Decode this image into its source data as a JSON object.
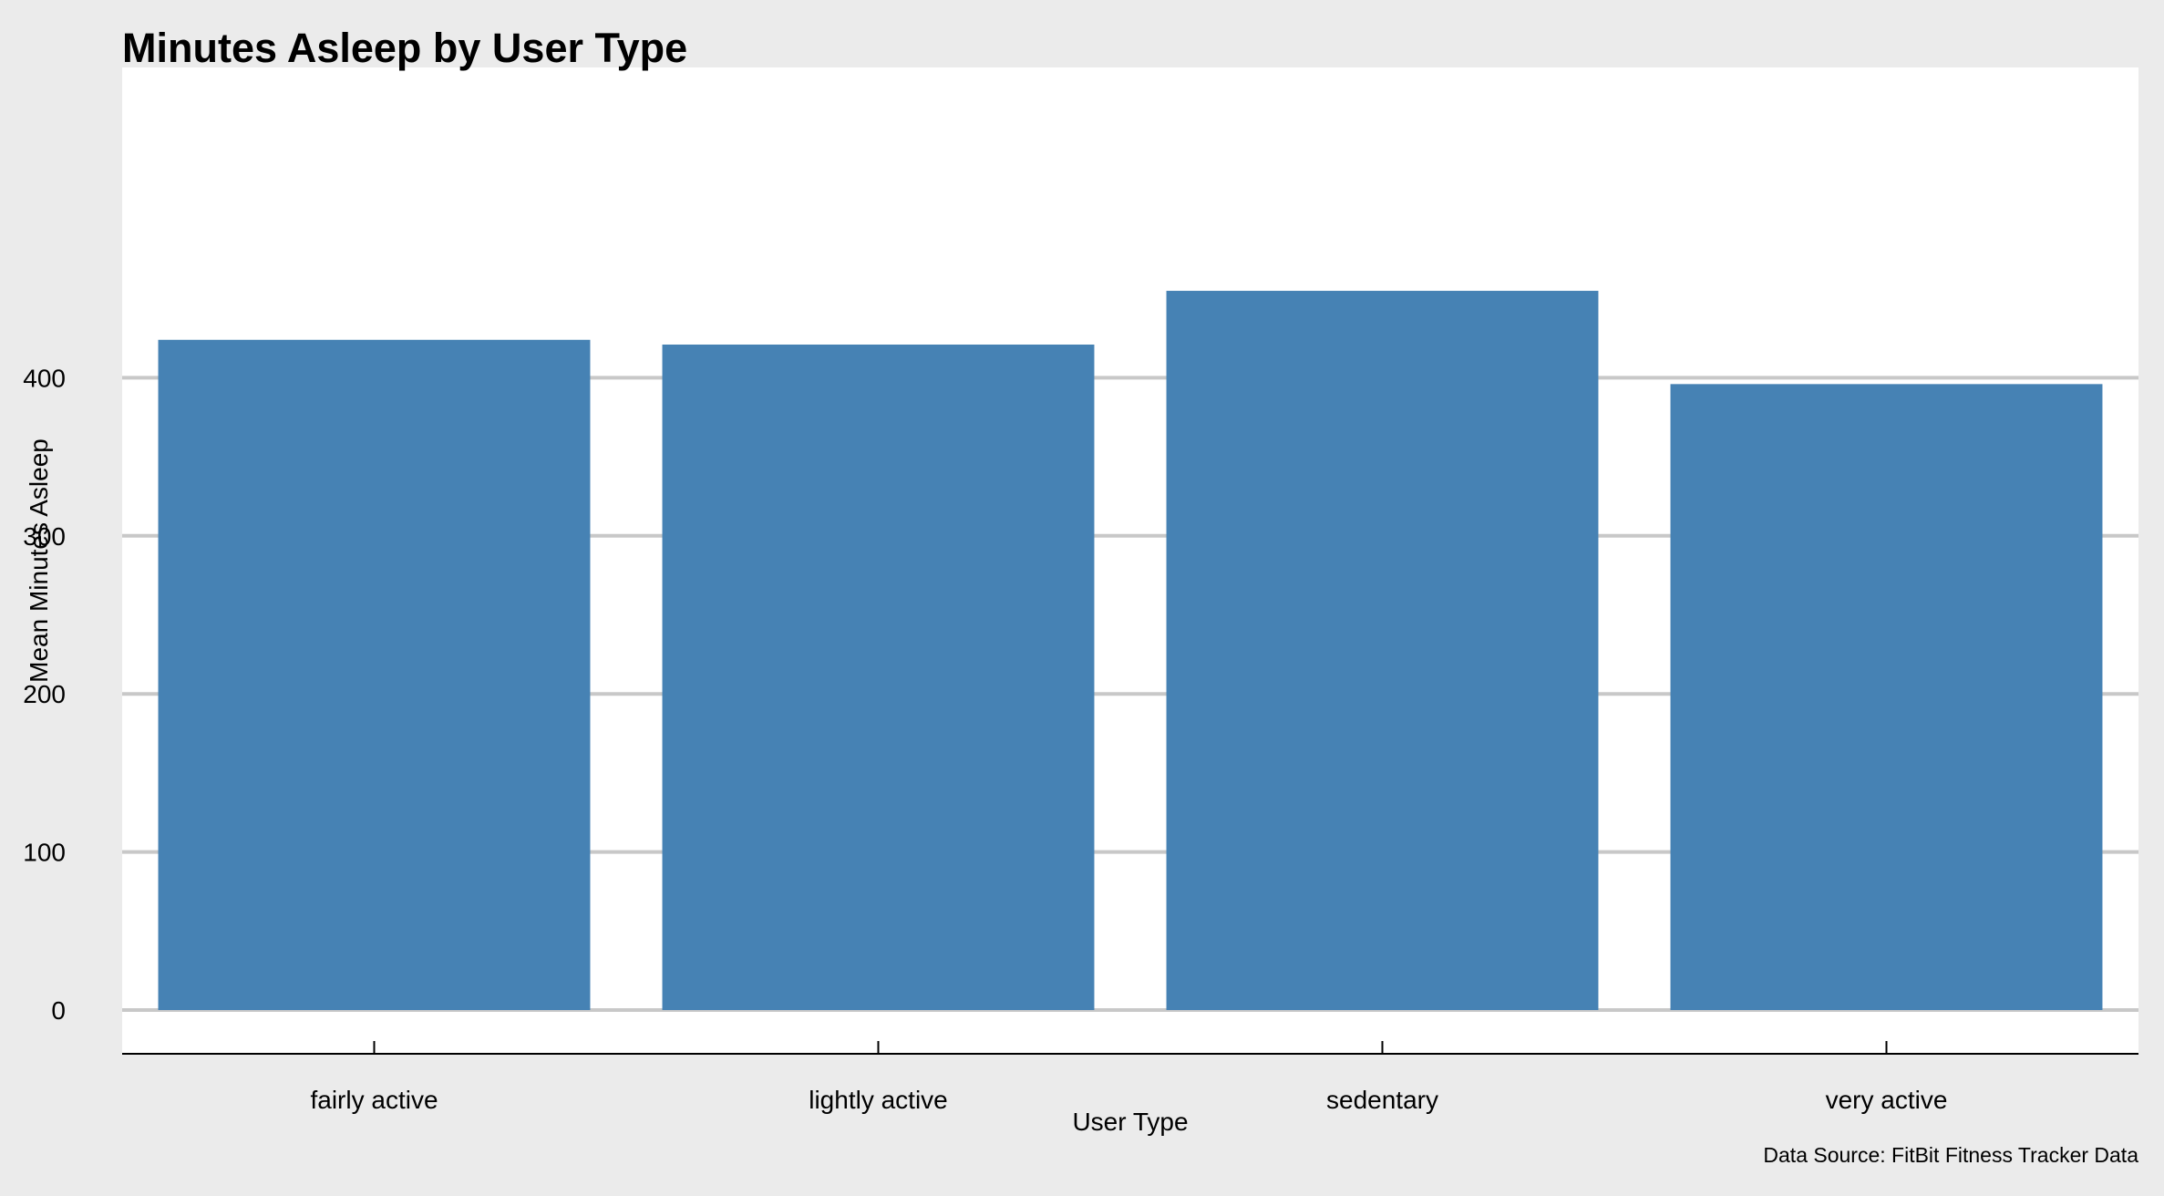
{
  "colors": {
    "background": "#ebebeb",
    "panel": "#ffffff",
    "bar": "#4682b4",
    "gridline": "#c8c8c8",
    "axis": "#000000"
  },
  "chart_data": {
    "type": "bar",
    "title": "Minutes Asleep by User Type",
    "xlabel": "User Type",
    "ylabel": "Mean Minutes Asleep",
    "caption": "Data Source: FitBit Fitness Tracker Data",
    "categories": [
      "fairly active",
      "lightly active",
      "sedentary",
      "very active"
    ],
    "values": [
      424,
      421,
      455,
      396
    ],
    "yticks": [
      0,
      100,
      200,
      300,
      400
    ],
    "ylim": [
      0,
      477
    ],
    "grid": "horizontal",
    "bar_color": "#4682b4"
  }
}
